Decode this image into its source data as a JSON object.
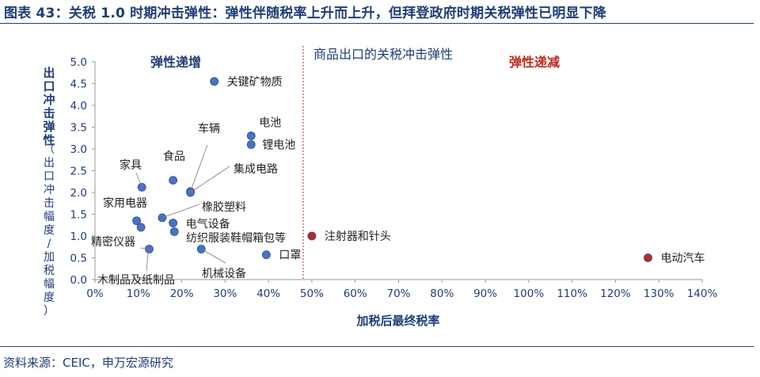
{
  "header": {
    "title": "图表 43：关税 1.0 时期冲击弹性：弹性伴随税率上升而上升，但拜登政府时期关税弹性已明显下降"
  },
  "footer": {
    "source": "资料来源：CEIC，申万宏源研究"
  },
  "colors": {
    "title_navy": "#1f3d7a",
    "point_blue": "#4a72c4",
    "point_red": "#c0281d",
    "divider_red": "#c0281d",
    "annotation_red": "#c0281d"
  },
  "chart_data": {
    "type": "scatter",
    "title": "商品出口的关税冲击弹性",
    "xlabel": "加税后最终税率",
    "ylabel_main": "出口冲击弹性",
    "ylabel_note": "（出口冲击幅度/加税幅度）",
    "xlim": [
      0,
      140
    ],
    "ylim": [
      0,
      5
    ],
    "x_ticks": [
      "0%",
      "10%",
      "20%",
      "30%",
      "40%",
      "50%",
      "60%",
      "70%",
      "80%",
      "90%",
      "100%",
      "110%",
      "120%",
      "130%",
      "140%"
    ],
    "y_ticks": [
      "0.0",
      "0.5",
      "1.0",
      "1.5",
      "2.0",
      "2.5",
      "3.0",
      "3.5",
      "4.0",
      "4.5",
      "5.0"
    ],
    "divider_x": 48,
    "regions": [
      {
        "label": "弹性递增",
        "color": "#1f3d7a"
      },
      {
        "label": "弹性递减",
        "color": "#c0281d"
      }
    ],
    "points": [
      {
        "label": "关键矿物质",
        "x": 27.5,
        "y": 4.55,
        "color": "#4a72c4"
      },
      {
        "label": "电池",
        "x": 36,
        "y": 3.3,
        "color": "#4a72c4"
      },
      {
        "label": "锂电池",
        "x": 36,
        "y": 3.1,
        "color": "#4a72c4"
      },
      {
        "label": "车辆",
        "x": 22,
        "y": 2.02,
        "color": "#4a72c4"
      },
      {
        "label": "集成电路",
        "x": 22,
        "y": 2.0,
        "color": "#4a72c4"
      },
      {
        "label": "食品",
        "x": 18,
        "y": 2.28,
        "color": "#4a72c4"
      },
      {
        "label": "家具",
        "x": 10.8,
        "y": 2.12,
        "color": "#4a72c4"
      },
      {
        "label": "橡胶塑料",
        "x": 15.5,
        "y": 1.42,
        "color": "#4a72c4"
      },
      {
        "label": "家用电器",
        "x": 9.6,
        "y": 1.35,
        "color": "#4a72c4"
      },
      {
        "label": "家用电器",
        "x": 10.6,
        "y": 1.2,
        "color": "#4a72c4"
      },
      {
        "label": "电气设备",
        "x": 18,
        "y": 1.3,
        "color": "#4a72c4"
      },
      {
        "label": "纺织服装鞋帽箱包等",
        "x": 18.3,
        "y": 1.1,
        "color": "#4a72c4"
      },
      {
        "label": "精密仪器",
        "x": 12.5,
        "y": 0.7,
        "color": "#4a72c4"
      },
      {
        "label": "机械设备",
        "x": 24.5,
        "y": 0.7,
        "color": "#4a72c4"
      },
      {
        "label": "口罩",
        "x": 39.5,
        "y": 0.57,
        "color": "#4a72c4"
      },
      {
        "label": "注射器和针头",
        "x": 50,
        "y": 1.0,
        "color": "#c0281d"
      },
      {
        "label": "电动汽车",
        "x": 127.5,
        "y": 0.5,
        "color": "#c0281d"
      },
      {
        "label": "木制品及纸制品",
        "x": 11.5,
        "y": 0.5,
        "color": "#4a72c4"
      }
    ]
  }
}
